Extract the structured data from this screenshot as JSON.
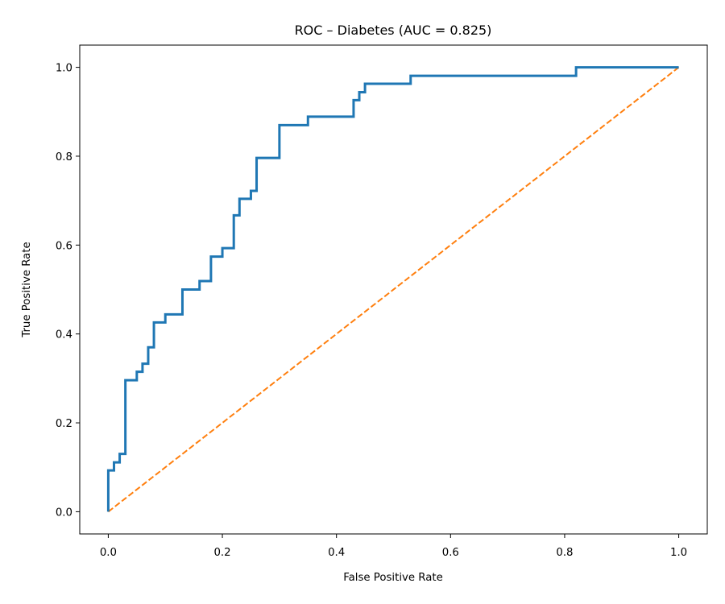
{
  "chart_data": {
    "type": "line",
    "title": "ROC – Diabetes (AUC = 0.825)",
    "xlabel": "False Positive Rate",
    "ylabel": "True Positive Rate",
    "xlim": [
      -0.05,
      1.05
    ],
    "ylim": [
      -0.05,
      1.05
    ],
    "xticks": [
      0.0,
      0.2,
      0.4,
      0.6,
      0.8,
      1.0
    ],
    "yticks": [
      0.0,
      0.2,
      0.4,
      0.6,
      0.8,
      1.0
    ],
    "xtick_labels": [
      "0.0",
      "0.2",
      "0.4",
      "0.6",
      "0.8",
      "1.0"
    ],
    "ytick_labels": [
      "0.0",
      "0.2",
      "0.4",
      "0.6",
      "0.8",
      "1.0"
    ],
    "grid": false,
    "series": [
      {
        "color": "#1f77b4",
        "style": "solid",
        "x": [
          0.0,
          0.0,
          0.01,
          0.01,
          0.02,
          0.02,
          0.03,
          0.03,
          0.05,
          0.05,
          0.06,
          0.06,
          0.07,
          0.07,
          0.08,
          0.08,
          0.1,
          0.1,
          0.13,
          0.13,
          0.16,
          0.16,
          0.18,
          0.18,
          0.2,
          0.2,
          0.22,
          0.22,
          0.23,
          0.23,
          0.25,
          0.25,
          0.26,
          0.26,
          0.3,
          0.3,
          0.35,
          0.35,
          0.43,
          0.43,
          0.44,
          0.44,
          0.45,
          0.45,
          0.53,
          0.53,
          0.82,
          0.82,
          1.0
        ],
        "y": [
          0.0,
          0.093,
          0.093,
          0.111,
          0.111,
          0.13,
          0.13,
          0.296,
          0.296,
          0.315,
          0.315,
          0.333,
          0.333,
          0.37,
          0.37,
          0.426,
          0.426,
          0.444,
          0.444,
          0.5,
          0.5,
          0.519,
          0.519,
          0.574,
          0.574,
          0.593,
          0.593,
          0.667,
          0.667,
          0.704,
          0.704,
          0.722,
          0.722,
          0.796,
          0.796,
          0.87,
          0.87,
          0.889,
          0.889,
          0.926,
          0.926,
          0.944,
          0.944,
          0.963,
          0.963,
          0.981,
          0.981,
          1.0,
          1.0
        ]
      },
      {
        "color": "#ff7f0e",
        "style": "dashed",
        "x": [
          0.0,
          1.0
        ],
        "y": [
          0.0,
          1.0
        ]
      }
    ]
  }
}
